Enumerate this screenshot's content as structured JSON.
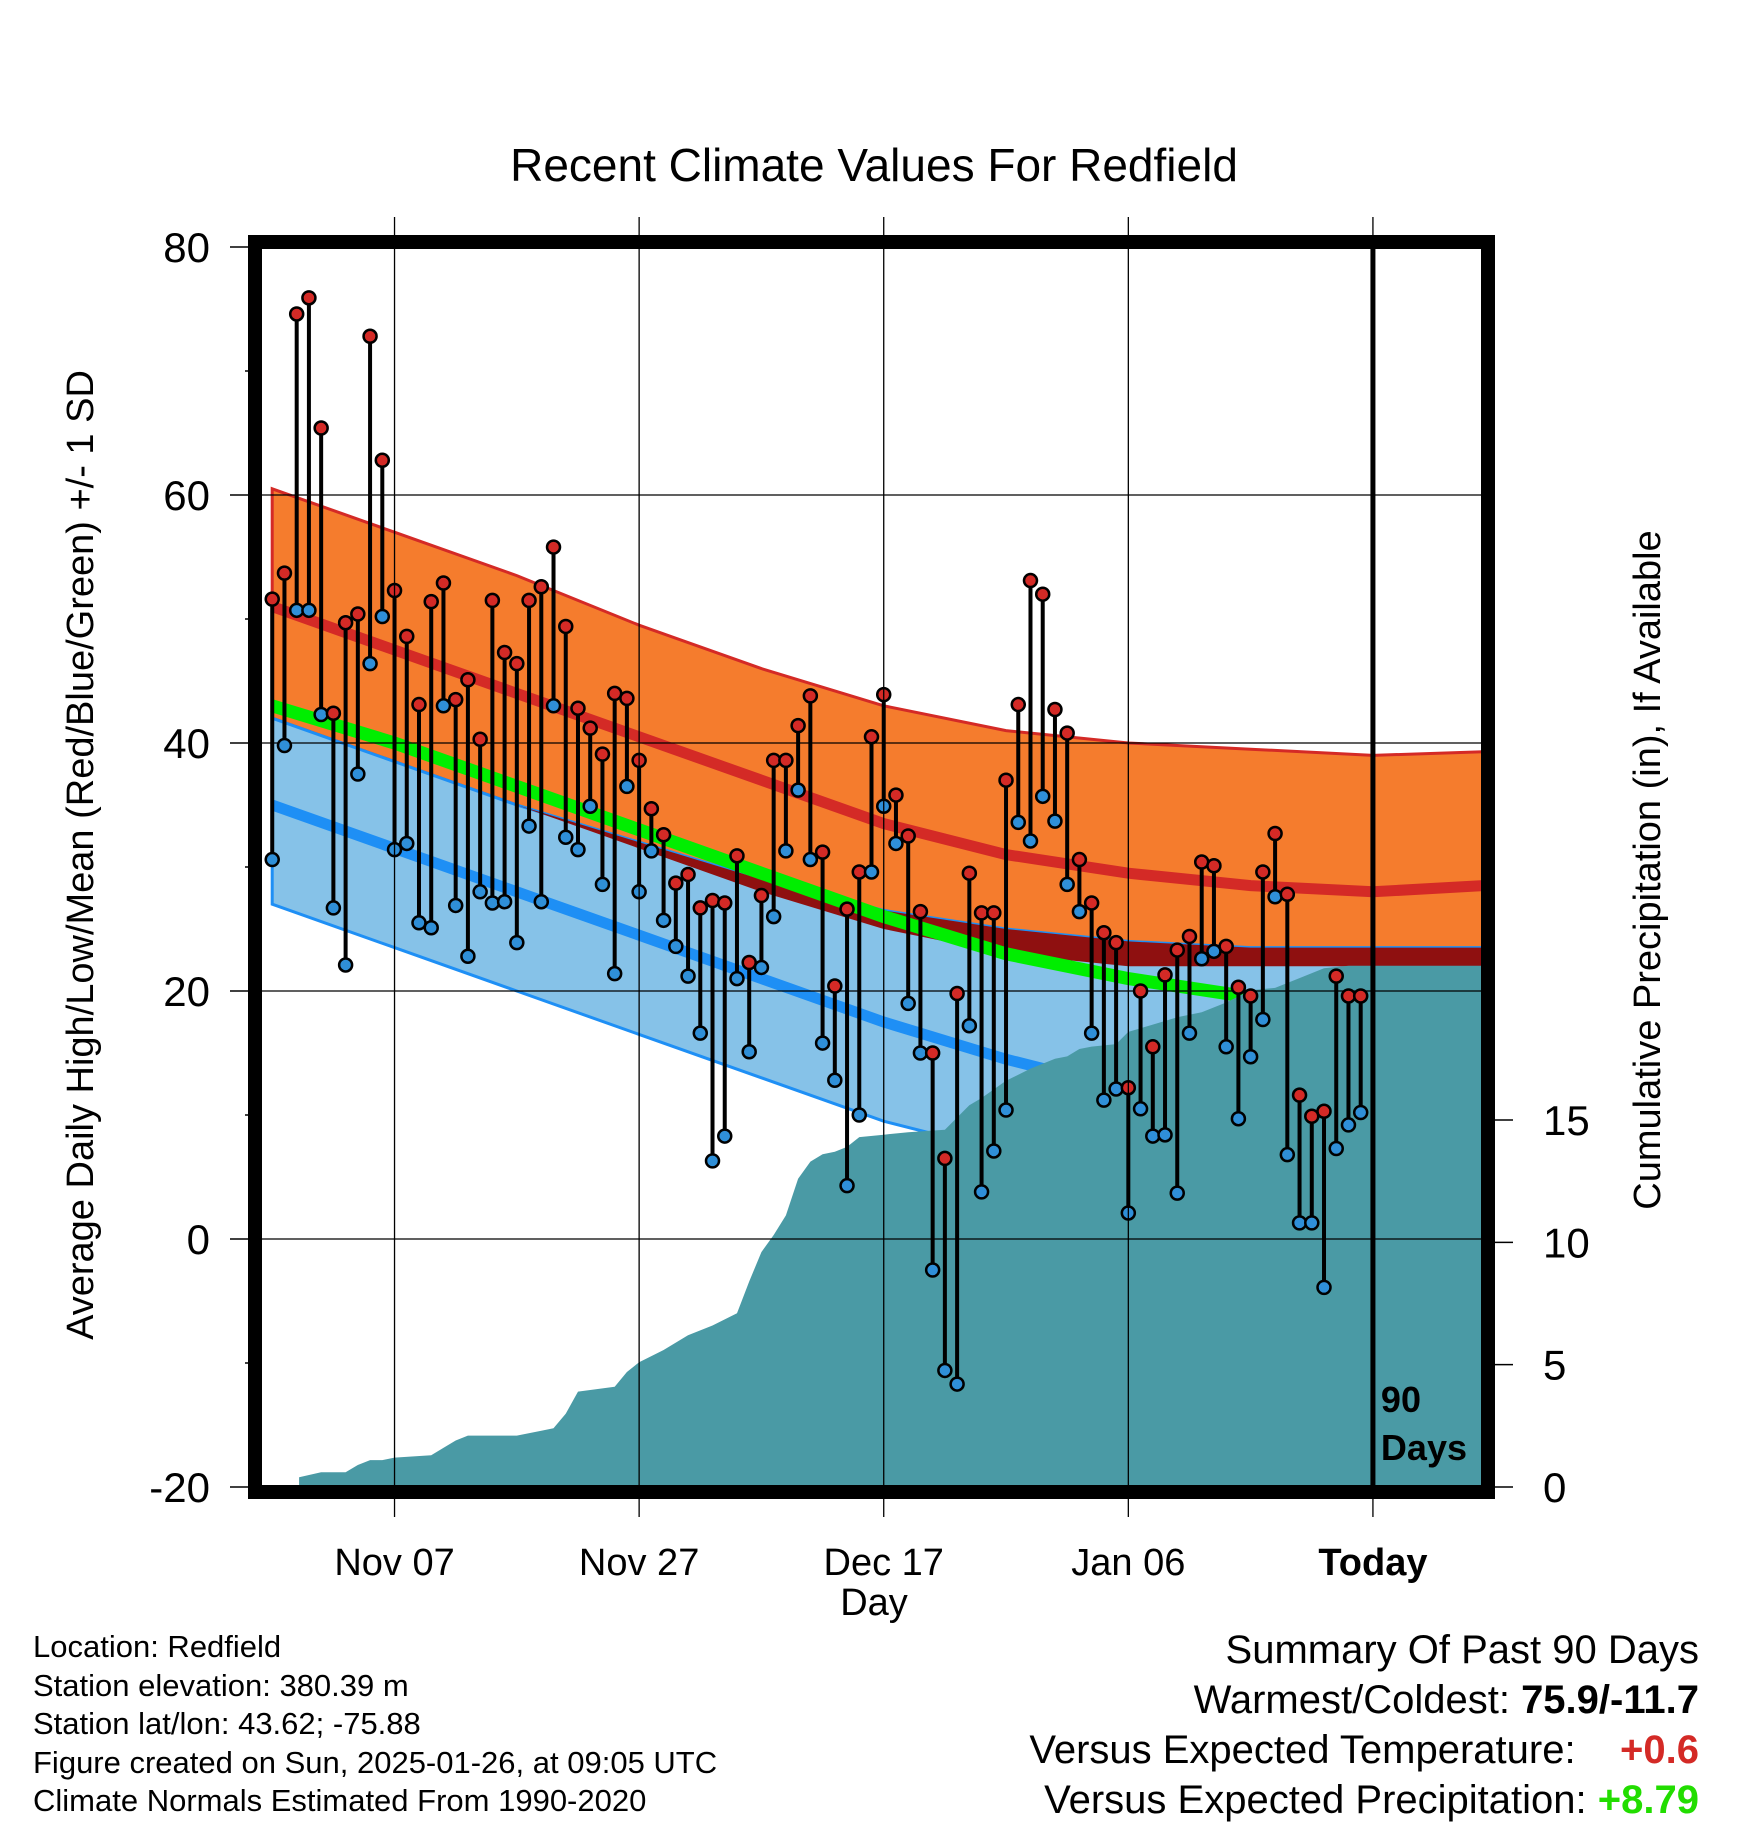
{
  "chart_data": {
    "type": "line",
    "title": "Recent Climate Values For Redfield",
    "xlabel": "Day",
    "ylabel": "Average Daily High/Low/Mean (Red/Blue/Green) +/- 1 SD",
    "y2label": "Cumulative Precipitation (in), If Available",
    "ylim": [
      -20,
      80
    ],
    "y2lim": [
      0,
      50
    ],
    "xlim": [
      -1,
      99
    ],
    "yticks": [
      "-20",
      "0",
      "20",
      "40",
      "60",
      "80"
    ],
    "y2ticks": [
      "0",
      "5",
      "10",
      "15"
    ],
    "xtick_labels": [
      "Nov 07",
      "Nov 27",
      "Dec 17",
      "Jan 06",
      "Today"
    ],
    "xtick_days": [
      10,
      30,
      50,
      70,
      90
    ],
    "period_label": "90 Days",
    "colors": {
      "normal_high_band": "#f57c2d",
      "normal_high_line": "#d42a26",
      "normal_low_band": "#86c2e8",
      "normal_low_line": "#1e8ff5",
      "mean_band_dark": "#8f1010",
      "normal_mean_line": "#00ee00",
      "precip_fill": "#4a9aa5",
      "high_marker": "#d42a26",
      "low_marker": "#2f8fd8"
    },
    "normals": {
      "days": [
        0,
        10,
        20,
        30,
        40,
        50,
        60,
        70,
        80,
        90,
        99
      ],
      "high_mean": [
        51,
        47.5,
        44,
        40.5,
        37,
        33.5,
        31,
        29.5,
        28.5,
        28,
        28.5
      ],
      "high_sd_upper": [
        60.5,
        57,
        53.5,
        49.5,
        46,
        43,
        41,
        40,
        39.5,
        39,
        39.3
      ],
      "high_sd_lower": [
        42,
        38.5,
        35,
        31.5,
        28,
        25,
        23,
        22,
        22,
        22,
        22
      ],
      "low_mean": [
        35,
        31.5,
        28,
        24.5,
        21,
        17.5,
        14.5,
        12,
        9.5,
        7.5,
        6.5
      ],
      "low_sd_upper": [
        42,
        38.5,
        35,
        32,
        29,
        26.5,
        25,
        24,
        23.5,
        23.5,
        23.5
      ],
      "low_sd_lower": [
        27,
        23.5,
        20,
        16.5,
        13,
        9.5,
        7,
        5,
        3,
        1.5,
        0.5
      ],
      "mean_line": [
        43,
        40,
        36.5,
        33,
        29.5,
        26,
        23,
        21,
        19.5,
        18.5,
        18
      ]
    },
    "series": [
      {
        "name": "Daily High",
        "values": [
          51.6,
          53.7,
          74.6,
          75.9,
          65.4,
          42.4,
          49.7,
          50.4,
          72.8,
          62.8,
          52.3,
          48.6,
          43.1,
          51.4,
          52.9,
          43.5,
          45.1,
          40.3,
          51.5,
          47.3,
          46.4,
          51.5,
          52.6,
          55.8,
          49.4,
          42.8,
          41.2,
          39.1,
          44.0,
          43.6,
          38.6,
          34.7,
          32.6,
          28.7,
          29.4,
          26.7,
          27.3,
          27.1,
          30.9,
          22.3,
          27.7,
          38.6,
          38.6,
          41.4,
          43.8,
          31.2,
          20.4,
          26.6,
          29.6,
          40.5,
          43.9,
          35.8,
          32.5,
          26.4,
          15.0,
          6.5,
          19.8,
          29.5,
          26.3,
          26.3,
          37.0,
          43.1,
          53.1,
          52.0,
          42.7,
          40.8,
          30.6,
          27.1,
          24.7,
          23.9,
          12.2,
          20.0,
          15.5,
          21.3,
          23.3,
          24.4,
          30.4,
          30.1,
          23.6,
          20.3,
          19.6,
          29.6,
          32.7,
          27.8,
          11.6,
          9.9,
          10.3,
          21.2,
          19.6,
          19.6
        ],
        "marker_color": "#d42a26"
      },
      {
        "name": "Daily Low",
        "values": [
          30.6,
          39.8,
          50.7,
          50.7,
          42.3,
          26.7,
          22.1,
          37.5,
          46.4,
          50.2,
          31.4,
          31.9,
          25.5,
          25.1,
          43.0,
          26.9,
          22.8,
          28.0,
          27.1,
          27.2,
          23.9,
          33.3,
          27.2,
          43.0,
          32.4,
          31.4,
          34.9,
          28.6,
          21.4,
          36.5,
          28.0,
          31.3,
          25.7,
          23.6,
          21.2,
          16.6,
          6.3,
          8.3,
          21.0,
          15.1,
          21.9,
          26.0,
          31.3,
          36.2,
          30.6,
          15.8,
          12.8,
          4.3,
          10.0,
          29.6,
          34.9,
          31.9,
          19.0,
          15.0,
          -2.5,
          -10.6,
          -11.7,
          17.2,
          3.8,
          7.1,
          10.4,
          33.6,
          32.1,
          35.7,
          33.7,
          28.6,
          26.4,
          16.6,
          11.2,
          12.1,
          2.1,
          10.5,
          8.3,
          8.4,
          3.7,
          16.6,
          22.6,
          23.2,
          15.5,
          9.7,
          14.7,
          17.7,
          27.6,
          6.8,
          1.3,
          1.3,
          -3.9,
          7.3,
          9.2,
          10.2
        ],
        "marker_color": "#2f8fd8"
      },
      {
        "name": "Cumulative Precipitation",
        "axis": "y2",
        "days": [
          2.2,
          4,
          6,
          7,
          8,
          9,
          10,
          13,
          14,
          15,
          16,
          20,
          22,
          23,
          24,
          25,
          28,
          29,
          30,
          32,
          34,
          36,
          38,
          39,
          40,
          41,
          42,
          43,
          44,
          45,
          46,
          47,
          48,
          50,
          52,
          55,
          56,
          57,
          58,
          60,
          62,
          64,
          65,
          66,
          67,
          69,
          70,
          72,
          74,
          76,
          78,
          80,
          82,
          84,
          86,
          88,
          99
        ],
        "values": [
          0.4,
          0.6,
          0.6,
          0.9,
          1.1,
          1.1,
          1.2,
          1.3,
          1.6,
          1.9,
          2.1,
          2.1,
          2.3,
          2.4,
          3.0,
          3.9,
          4.1,
          4.7,
          5.1,
          5.6,
          6.2,
          6.6,
          7.1,
          8.4,
          9.6,
          10.3,
          11.1,
          12.6,
          13.3,
          13.6,
          13.7,
          13.9,
          14.3,
          14.4,
          14.5,
          14.6,
          15.1,
          15.6,
          15.9,
          16.6,
          17.1,
          17.5,
          17.6,
          17.9,
          18.0,
          18.1,
          18.6,
          18.9,
          19.2,
          19.4,
          19.8,
          20.3,
          20.4,
          20.8,
          21.2,
          21.3,
          21.3
        ]
      }
    ]
  },
  "info": {
    "location": "Location: Redfield",
    "elevation": "Station elevation: 380.39 m",
    "latlon": "Station lat/lon: 43.62; -75.88",
    "created": "Figure created on Sun, 2025-01-26, at 09:05 UTC",
    "normals_period": "Climate Normals Estimated From 1990-2020"
  },
  "summary": {
    "heading": "Summary Of Past 90 Days",
    "warm_cold_label": "Warmest/Coldest:",
    "warm_cold_value": "75.9/-11.7",
    "temp_label": "Versus Expected Temperature:",
    "temp_value": "+0.6",
    "temp_color": "#d42a26",
    "precip_label": "Versus Expected Precipitation:",
    "precip_value": "+8.79",
    "precip_color": "#22dd00"
  }
}
